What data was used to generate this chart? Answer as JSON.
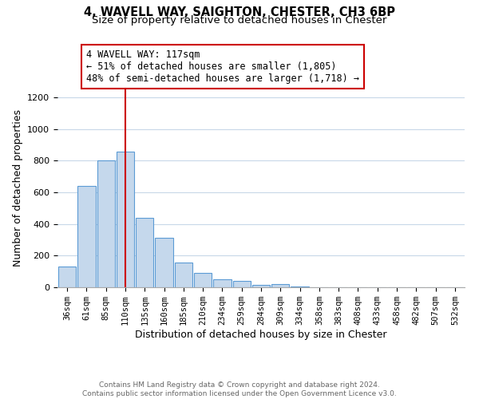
{
  "title": "4, WAVELL WAY, SAIGHTON, CHESTER, CH3 6BP",
  "subtitle": "Size of property relative to detached houses in Chester",
  "xlabel": "Distribution of detached houses by size in Chester",
  "ylabel": "Number of detached properties",
  "bar_labels": [
    "36sqm",
    "61sqm",
    "85sqm",
    "110sqm",
    "135sqm",
    "160sqm",
    "185sqm",
    "210sqm",
    "234sqm",
    "259sqm",
    "284sqm",
    "309sqm",
    "334sqm",
    "358sqm",
    "383sqm",
    "408sqm",
    "433sqm",
    "458sqm",
    "482sqm",
    "507sqm",
    "532sqm"
  ],
  "bar_values": [
    130,
    640,
    800,
    855,
    440,
    310,
    155,
    90,
    52,
    42,
    15,
    20,
    5,
    2,
    0,
    0,
    0,
    0,
    0,
    0,
    0
  ],
  "bar_color": "#c5d8ec",
  "bar_edge_color": "#5b9bd5",
  "property_line_index": 3,
  "property_line_color": "#cc0000",
  "ylim_max": 1260,
  "annotation_title": "4 WAVELL WAY: 117sqm",
  "annotation_line1": "← 51% of detached houses are smaller (1,805)",
  "annotation_line2": "48% of semi-detached houses are larger (1,718) →",
  "footer_line1": "Contains HM Land Registry data © Crown copyright and database right 2024.",
  "footer_line2": "Contains public sector information licensed under the Open Government Licence v3.0.",
  "background_color": "#ffffff",
  "grid_color": "#c8d8e8"
}
